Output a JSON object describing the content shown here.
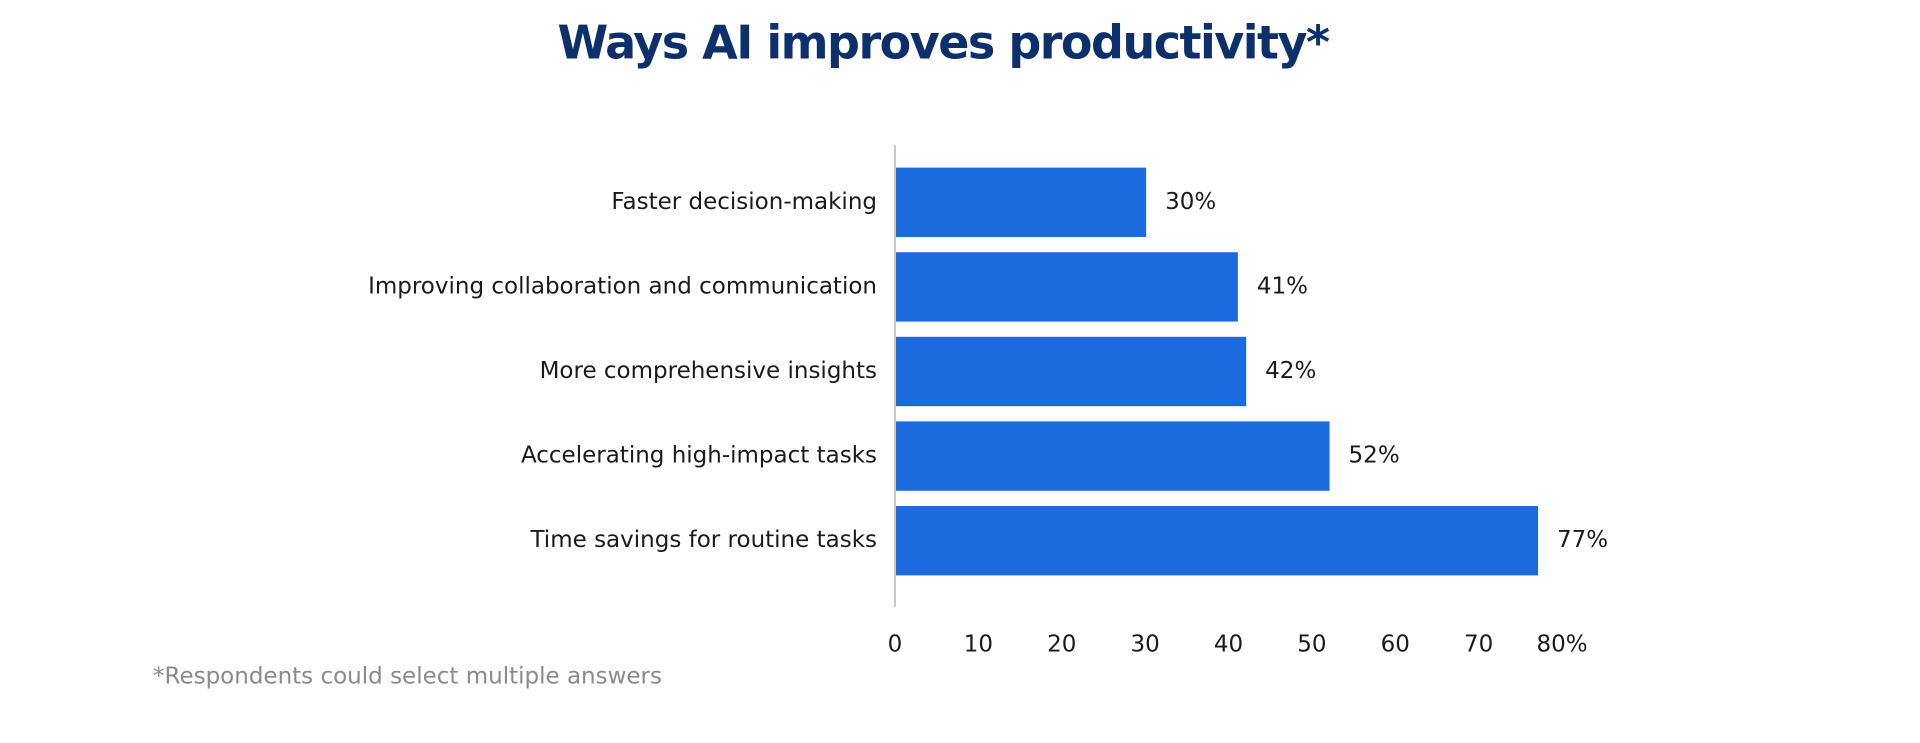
{
  "chart_data": {
    "type": "bar",
    "orientation": "horizontal",
    "title": "Ways AI improves productivity*",
    "footnote": "*Respondents could select multiple answers",
    "categories": [
      "Faster decision-making",
      "Improving collaboration and communication",
      "More comprehensive insights",
      "Accelerating high-impact tasks",
      "Time savings for routine tasks"
    ],
    "values": [
      30,
      41,
      42,
      52,
      77
    ],
    "value_labels": [
      "30%",
      "41%",
      "42%",
      "52%",
      "77%"
    ],
    "color": "#1b6ade",
    "xlim": [
      0,
      80
    ],
    "xticks": [
      0,
      10,
      20,
      30,
      40,
      50,
      60,
      70,
      {
        "value": 80,
        "label": "80%"
      }
    ],
    "grid": false
  }
}
